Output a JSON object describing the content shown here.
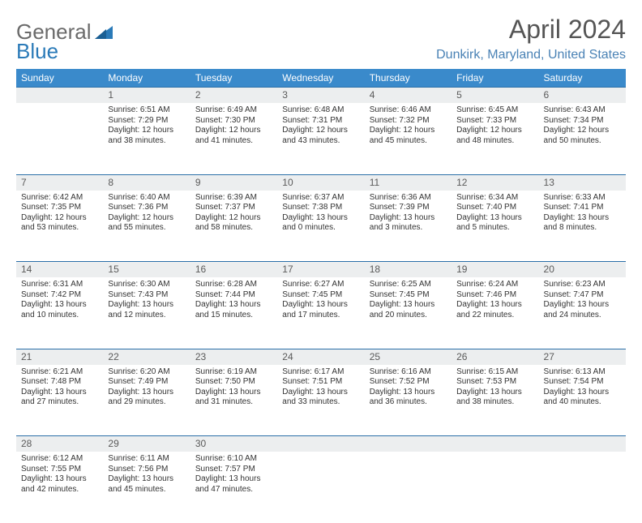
{
  "logo": {
    "word1": "General",
    "word2": "Blue"
  },
  "title": "April 2024",
  "location": "Dunkirk, Maryland, United States",
  "colors": {
    "header_bg": "#3a8acb",
    "header_border": "#2a6fa8",
    "daynum_bg": "#eceeef",
    "location_color": "#4a82b5"
  },
  "weekday_headers": [
    "Sunday",
    "Monday",
    "Tuesday",
    "Wednesday",
    "Thursday",
    "Friday",
    "Saturday"
  ],
  "weeks": [
    {
      "nums": [
        "",
        "1",
        "2",
        "3",
        "4",
        "5",
        "6"
      ],
      "cells": [
        {
          "empty": true
        },
        {
          "sunrise": "Sunrise: 6:51 AM",
          "sunset": "Sunset: 7:29 PM",
          "day1": "Daylight: 12 hours",
          "day2": "and 38 minutes."
        },
        {
          "sunrise": "Sunrise: 6:49 AM",
          "sunset": "Sunset: 7:30 PM",
          "day1": "Daylight: 12 hours",
          "day2": "and 41 minutes."
        },
        {
          "sunrise": "Sunrise: 6:48 AM",
          "sunset": "Sunset: 7:31 PM",
          "day1": "Daylight: 12 hours",
          "day2": "and 43 minutes."
        },
        {
          "sunrise": "Sunrise: 6:46 AM",
          "sunset": "Sunset: 7:32 PM",
          "day1": "Daylight: 12 hours",
          "day2": "and 45 minutes."
        },
        {
          "sunrise": "Sunrise: 6:45 AM",
          "sunset": "Sunset: 7:33 PM",
          "day1": "Daylight: 12 hours",
          "day2": "and 48 minutes."
        },
        {
          "sunrise": "Sunrise: 6:43 AM",
          "sunset": "Sunset: 7:34 PM",
          "day1": "Daylight: 12 hours",
          "day2": "and 50 minutes."
        }
      ]
    },
    {
      "nums": [
        "7",
        "8",
        "9",
        "10",
        "11",
        "12",
        "13"
      ],
      "cells": [
        {
          "sunrise": "Sunrise: 6:42 AM",
          "sunset": "Sunset: 7:35 PM",
          "day1": "Daylight: 12 hours",
          "day2": "and 53 minutes."
        },
        {
          "sunrise": "Sunrise: 6:40 AM",
          "sunset": "Sunset: 7:36 PM",
          "day1": "Daylight: 12 hours",
          "day2": "and 55 minutes."
        },
        {
          "sunrise": "Sunrise: 6:39 AM",
          "sunset": "Sunset: 7:37 PM",
          "day1": "Daylight: 12 hours",
          "day2": "and 58 minutes."
        },
        {
          "sunrise": "Sunrise: 6:37 AM",
          "sunset": "Sunset: 7:38 PM",
          "day1": "Daylight: 13 hours",
          "day2": "and 0 minutes."
        },
        {
          "sunrise": "Sunrise: 6:36 AM",
          "sunset": "Sunset: 7:39 PM",
          "day1": "Daylight: 13 hours",
          "day2": "and 3 minutes."
        },
        {
          "sunrise": "Sunrise: 6:34 AM",
          "sunset": "Sunset: 7:40 PM",
          "day1": "Daylight: 13 hours",
          "day2": "and 5 minutes."
        },
        {
          "sunrise": "Sunrise: 6:33 AM",
          "sunset": "Sunset: 7:41 PM",
          "day1": "Daylight: 13 hours",
          "day2": "and 8 minutes."
        }
      ]
    },
    {
      "nums": [
        "14",
        "15",
        "16",
        "17",
        "18",
        "19",
        "20"
      ],
      "cells": [
        {
          "sunrise": "Sunrise: 6:31 AM",
          "sunset": "Sunset: 7:42 PM",
          "day1": "Daylight: 13 hours",
          "day2": "and 10 minutes."
        },
        {
          "sunrise": "Sunrise: 6:30 AM",
          "sunset": "Sunset: 7:43 PM",
          "day1": "Daylight: 13 hours",
          "day2": "and 12 minutes."
        },
        {
          "sunrise": "Sunrise: 6:28 AM",
          "sunset": "Sunset: 7:44 PM",
          "day1": "Daylight: 13 hours",
          "day2": "and 15 minutes."
        },
        {
          "sunrise": "Sunrise: 6:27 AM",
          "sunset": "Sunset: 7:45 PM",
          "day1": "Daylight: 13 hours",
          "day2": "and 17 minutes."
        },
        {
          "sunrise": "Sunrise: 6:25 AM",
          "sunset": "Sunset: 7:45 PM",
          "day1": "Daylight: 13 hours",
          "day2": "and 20 minutes."
        },
        {
          "sunrise": "Sunrise: 6:24 AM",
          "sunset": "Sunset: 7:46 PM",
          "day1": "Daylight: 13 hours",
          "day2": "and 22 minutes."
        },
        {
          "sunrise": "Sunrise: 6:23 AM",
          "sunset": "Sunset: 7:47 PM",
          "day1": "Daylight: 13 hours",
          "day2": "and 24 minutes."
        }
      ]
    },
    {
      "nums": [
        "21",
        "22",
        "23",
        "24",
        "25",
        "26",
        "27"
      ],
      "cells": [
        {
          "sunrise": "Sunrise: 6:21 AM",
          "sunset": "Sunset: 7:48 PM",
          "day1": "Daylight: 13 hours",
          "day2": "and 27 minutes."
        },
        {
          "sunrise": "Sunrise: 6:20 AM",
          "sunset": "Sunset: 7:49 PM",
          "day1": "Daylight: 13 hours",
          "day2": "and 29 minutes."
        },
        {
          "sunrise": "Sunrise: 6:19 AM",
          "sunset": "Sunset: 7:50 PM",
          "day1": "Daylight: 13 hours",
          "day2": "and 31 minutes."
        },
        {
          "sunrise": "Sunrise: 6:17 AM",
          "sunset": "Sunset: 7:51 PM",
          "day1": "Daylight: 13 hours",
          "day2": "and 33 minutes."
        },
        {
          "sunrise": "Sunrise: 6:16 AM",
          "sunset": "Sunset: 7:52 PM",
          "day1": "Daylight: 13 hours",
          "day2": "and 36 minutes."
        },
        {
          "sunrise": "Sunrise: 6:15 AM",
          "sunset": "Sunset: 7:53 PM",
          "day1": "Daylight: 13 hours",
          "day2": "and 38 minutes."
        },
        {
          "sunrise": "Sunrise: 6:13 AM",
          "sunset": "Sunset: 7:54 PM",
          "day1": "Daylight: 13 hours",
          "day2": "and 40 minutes."
        }
      ]
    },
    {
      "nums": [
        "28",
        "29",
        "30",
        "",
        "",
        "",
        ""
      ],
      "cells": [
        {
          "sunrise": "Sunrise: 6:12 AM",
          "sunset": "Sunset: 7:55 PM",
          "day1": "Daylight: 13 hours",
          "day2": "and 42 minutes."
        },
        {
          "sunrise": "Sunrise: 6:11 AM",
          "sunset": "Sunset: 7:56 PM",
          "day1": "Daylight: 13 hours",
          "day2": "and 45 minutes."
        },
        {
          "sunrise": "Sunrise: 6:10 AM",
          "sunset": "Sunset: 7:57 PM",
          "day1": "Daylight: 13 hours",
          "day2": "and 47 minutes."
        },
        {
          "empty": true
        },
        {
          "empty": true
        },
        {
          "empty": true
        },
        {
          "empty": true
        }
      ]
    }
  ]
}
